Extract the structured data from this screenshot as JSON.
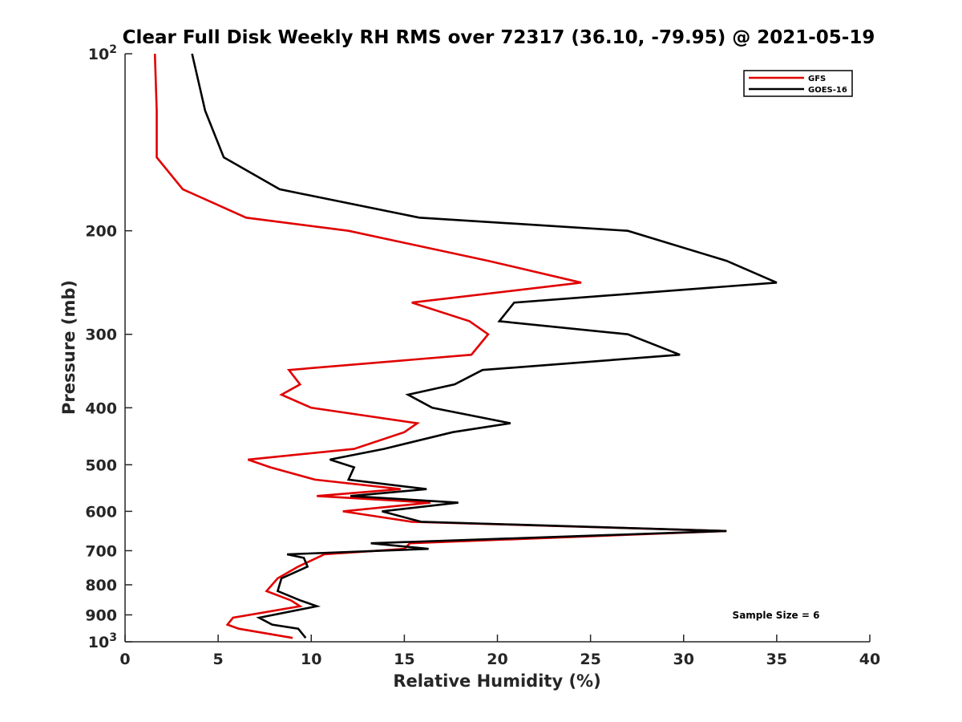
{
  "chart_data": {
    "type": "line",
    "title": "Clear Full Disk Weekly RH RMS over 72317 (36.10, -79.95) @ 2021-05-19",
    "xlabel": "Relative Humidity (%)",
    "ylabel": "Pressure (mb)",
    "xlim": [
      0,
      40
    ],
    "ylim": [
      100,
      1000
    ],
    "y_scale": "log",
    "y_reversed": true,
    "x_ticks": [
      "0",
      "5",
      "10",
      "15",
      "20",
      "25",
      "30",
      "35",
      "40"
    ],
    "y_ticks": [
      {
        "value": 100,
        "base": "10",
        "exp": "2"
      },
      {
        "value": 200,
        "label": "200"
      },
      {
        "value": 300,
        "label": "300"
      },
      {
        "value": 400,
        "label": "400"
      },
      {
        "value": 500,
        "label": "500"
      },
      {
        "value": 600,
        "label": "600"
      },
      {
        "value": 700,
        "label": "700"
      },
      {
        "value": 800,
        "label": "800"
      },
      {
        "value": 900,
        "label": "900"
      },
      {
        "value": 1000,
        "base": "10",
        "exp": "3"
      }
    ],
    "grid": false,
    "legend_position": "top-right",
    "series": [
      {
        "name": "GFS",
        "color": "#e00000",
        "points": [
          [
            1.6,
            100
          ],
          [
            1.7,
            125
          ],
          [
            1.7,
            150
          ],
          [
            3.1,
            170
          ],
          [
            6.5,
            190
          ],
          [
            12.0,
            200
          ],
          [
            19.5,
            225
          ],
          [
            24.5,
            245
          ],
          [
            15.4,
            265
          ],
          [
            18.5,
            285
          ],
          [
            19.5,
            300
          ],
          [
            18.6,
            325
          ],
          [
            8.8,
            345
          ],
          [
            9.4,
            365
          ],
          [
            8.4,
            380
          ],
          [
            10.0,
            400
          ],
          [
            15.7,
            425
          ],
          [
            15.0,
            440
          ],
          [
            12.3,
            470
          ],
          [
            6.6,
            490
          ],
          [
            7.8,
            505
          ],
          [
            10.2,
            530
          ],
          [
            14.8,
            550
          ],
          [
            10.3,
            565
          ],
          [
            16.4,
            580
          ],
          [
            11.7,
            600
          ],
          [
            15.4,
            625
          ],
          [
            32.3,
            648
          ],
          [
            15.3,
            680
          ],
          [
            15.0,
            695
          ],
          [
            10.7,
            710
          ],
          [
            10.3,
            720
          ],
          [
            9.3,
            745
          ],
          [
            8.2,
            780
          ],
          [
            7.6,
            820
          ],
          [
            8.9,
            850
          ],
          [
            9.4,
            870
          ],
          [
            5.8,
            910
          ],
          [
            5.5,
            935
          ],
          [
            6.1,
            950
          ],
          [
            9.0,
            985
          ]
        ]
      },
      {
        "name": "GOES-16",
        "color": "#000000",
        "points": [
          [
            3.6,
            100
          ],
          [
            4.3,
            125
          ],
          [
            5.3,
            150
          ],
          [
            8.3,
            170
          ],
          [
            15.8,
            190
          ],
          [
            27.0,
            200
          ],
          [
            32.3,
            225
          ],
          [
            35.0,
            245
          ],
          [
            20.9,
            265
          ],
          [
            20.1,
            285
          ],
          [
            27.0,
            300
          ],
          [
            29.8,
            325
          ],
          [
            19.2,
            345
          ],
          [
            17.7,
            365
          ],
          [
            15.2,
            380
          ],
          [
            16.5,
            400
          ],
          [
            20.7,
            425
          ],
          [
            17.6,
            440
          ],
          [
            13.9,
            470
          ],
          [
            11.0,
            490
          ],
          [
            12.3,
            505
          ],
          [
            12.0,
            530
          ],
          [
            16.2,
            550
          ],
          [
            12.1,
            565
          ],
          [
            17.9,
            580
          ],
          [
            13.8,
            600
          ],
          [
            15.9,
            625
          ],
          [
            32.3,
            648
          ],
          [
            13.2,
            680
          ],
          [
            16.3,
            695
          ],
          [
            8.7,
            710
          ],
          [
            9.6,
            720
          ],
          [
            9.8,
            745
          ],
          [
            8.4,
            780
          ],
          [
            8.2,
            820
          ],
          [
            9.4,
            850
          ],
          [
            10.3,
            870
          ],
          [
            7.2,
            910
          ],
          [
            7.9,
            935
          ],
          [
            9.3,
            950
          ],
          [
            9.7,
            985
          ]
        ]
      }
    ],
    "annotation": "Sample Size = 6"
  }
}
